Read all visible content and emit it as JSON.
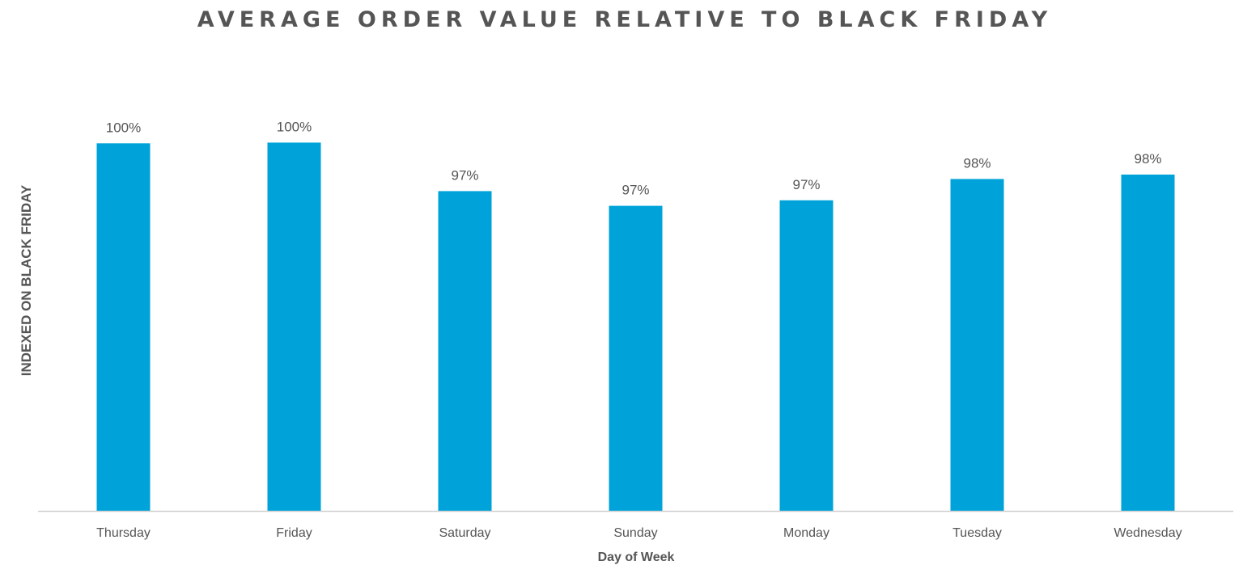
{
  "chart_data": {
    "type": "bar",
    "title": "AVERAGE ORDER VALUE RELATIVE TO BLACK FRIDAY",
    "xlabel": "Day of Week",
    "ylabel": "INDEXED ON BLACK FRIDAY",
    "categories": [
      "Thursday",
      "Friday",
      "Saturday",
      "Sunday",
      "Monday",
      "Tuesday",
      "Wednesday"
    ],
    "values": [
      100.0,
      100.04,
      97.4,
      96.6,
      96.9,
      98.06,
      98.3
    ],
    "data_labels": [
      "100%",
      "100%",
      "97%",
      "97%",
      "97%",
      "98%",
      "98%"
    ],
    "ylim": [
      80,
      103.4
    ],
    "grid": false,
    "legend": "none",
    "bar_color": "#00A3D9",
    "axis_color": "#D0D0D0"
  }
}
